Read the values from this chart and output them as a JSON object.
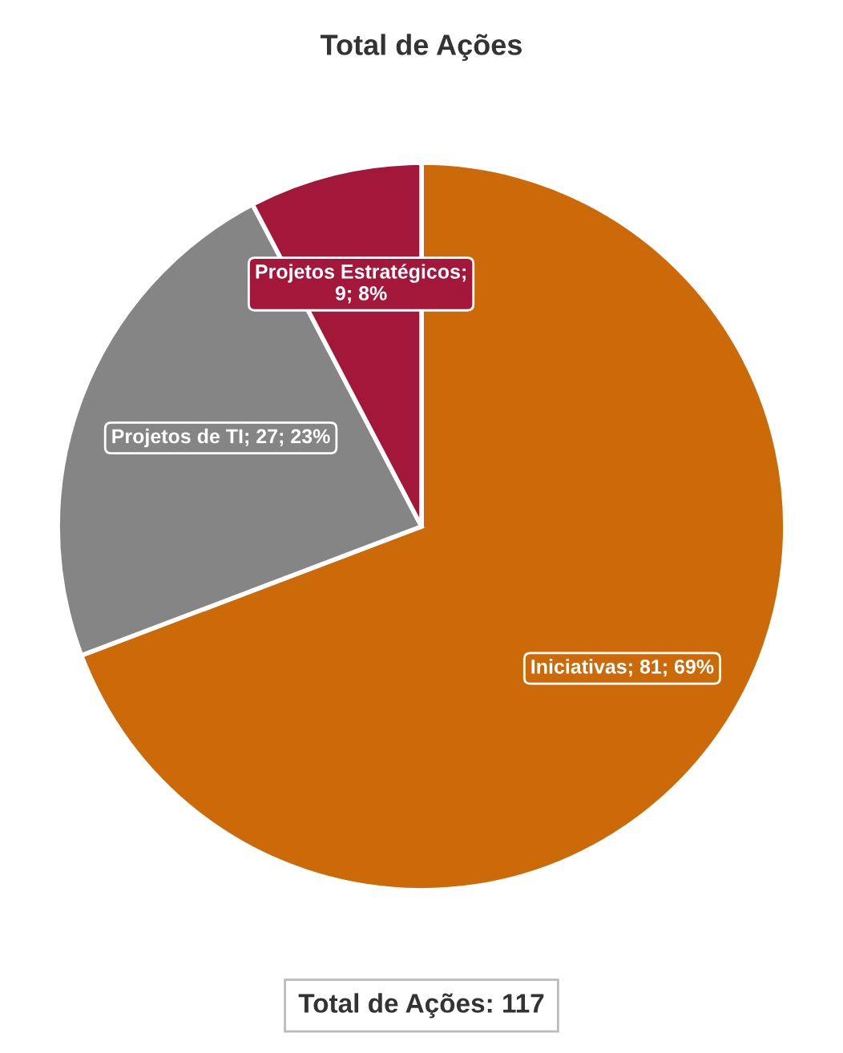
{
  "chart_data": {
    "type": "pie",
    "title": "Total de Ações",
    "categories": [
      "Iniciativas",
      "Projetos de TI",
      "Projetos Estratégicos"
    ],
    "values": [
      81,
      27,
      9
    ],
    "colors": [
      "#cc6a0a",
      "#858585",
      "#a3173a"
    ],
    "value_labels": [
      "; 81; 69%",
      "; 27; 23%",
      "; 9; 8%"
    ],
    "annotations": [
      "Total de Ações: 117"
    ]
  }
}
